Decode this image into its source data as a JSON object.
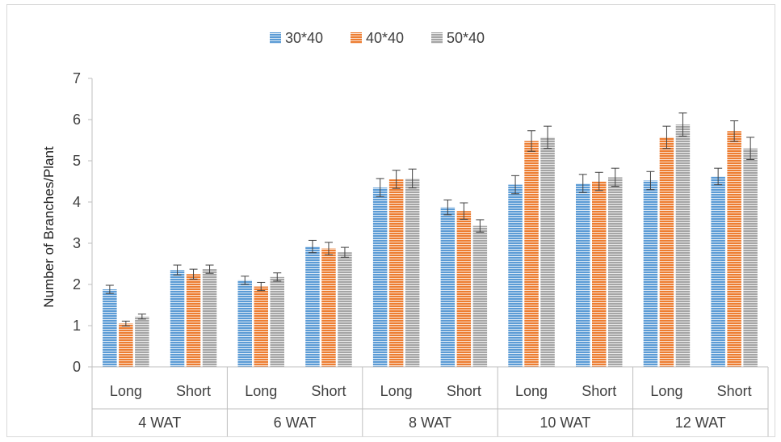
{
  "chart_data": {
    "type": "bar",
    "title": "",
    "xlabel": "",
    "ylabel": "Number of Branches/Plant",
    "ylim": [
      0,
      7
    ],
    "yticks": [
      0,
      1,
      2,
      3,
      4,
      5,
      6,
      7
    ],
    "grid": false,
    "legend_position": "top",
    "groups": [
      "4 WAT",
      "6 WAT",
      "8 WAT",
      "10 WAT",
      "12 WAT"
    ],
    "subcategories": [
      "Long",
      "Short"
    ],
    "categories": [
      "Long",
      "Short",
      "Long",
      "Short",
      "Long",
      "Short",
      "Long",
      "Short",
      "Long",
      "Short"
    ],
    "series": [
      {
        "name": "30*40",
        "color": "#5B9BD5",
        "values": [
          1.88,
          2.35,
          2.1,
          2.92,
          4.35,
          3.87,
          4.42,
          4.45,
          4.52,
          4.62
        ],
        "errors": [
          0.1,
          0.12,
          0.1,
          0.15,
          0.22,
          0.18,
          0.22,
          0.22,
          0.22,
          0.2
        ]
      },
      {
        "name": "40*40",
        "color": "#ED7D31",
        "values": [
          1.05,
          2.25,
          1.95,
          2.87,
          4.55,
          3.78,
          5.48,
          4.5,
          5.57,
          5.72
        ],
        "errors": [
          0.06,
          0.12,
          0.1,
          0.15,
          0.22,
          0.2,
          0.25,
          0.22,
          0.27,
          0.25
        ]
      },
      {
        "name": "50*40",
        "color": "#A5A5A5",
        "values": [
          1.22,
          2.37,
          2.18,
          2.78,
          4.57,
          3.42,
          5.57,
          4.6,
          5.88,
          5.3
        ],
        "errors": [
          0.06,
          0.1,
          0.1,
          0.12,
          0.23,
          0.15,
          0.27,
          0.22,
          0.28,
          0.27
        ]
      }
    ]
  }
}
